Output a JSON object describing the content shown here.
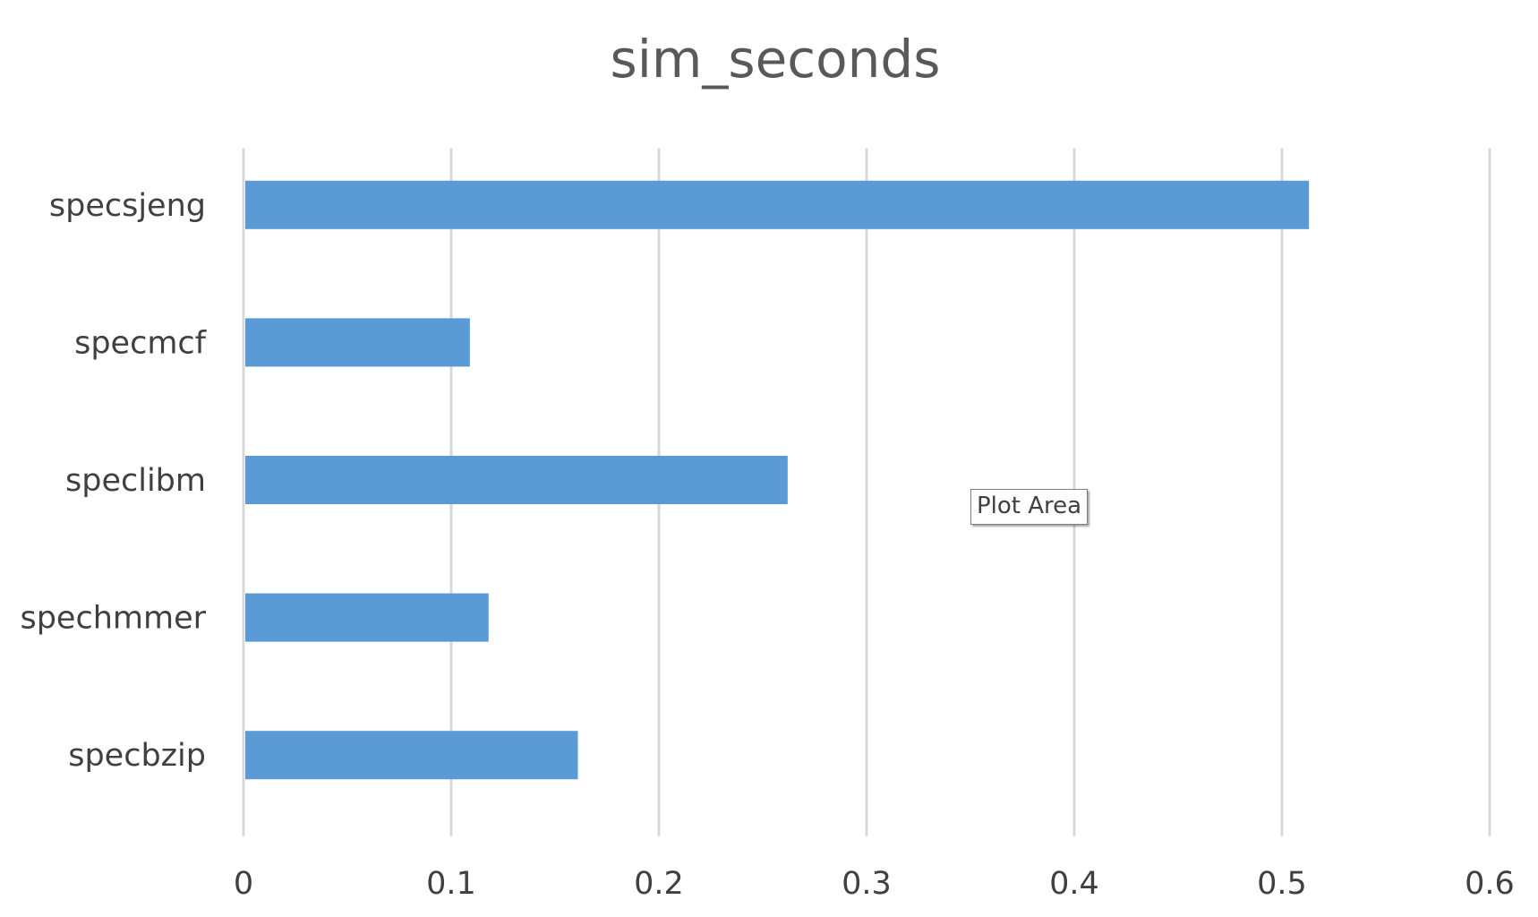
{
  "chart_data": {
    "type": "bar",
    "orientation": "horizontal",
    "title": "sim_seconds",
    "xlabel": "",
    "ylabel": "",
    "categories": [
      "specsjeng",
      "specmcf",
      "speclibm",
      "spechmmer",
      "specbzip"
    ],
    "values": [
      0.513,
      0.109,
      0.262,
      0.118,
      0.161
    ],
    "xlim": [
      0,
      0.6
    ],
    "xticks": [
      0,
      0.1,
      0.2,
      0.3,
      0.4,
      0.5,
      0.6
    ],
    "xtick_labels": [
      "0",
      "0.1",
      "0.2",
      "0.3",
      "0.4",
      "0.5",
      "0.6"
    ],
    "grid": true,
    "legend": "none",
    "bar_color": "#5b9bd5"
  },
  "tooltip": {
    "text": "Plot Area"
  }
}
